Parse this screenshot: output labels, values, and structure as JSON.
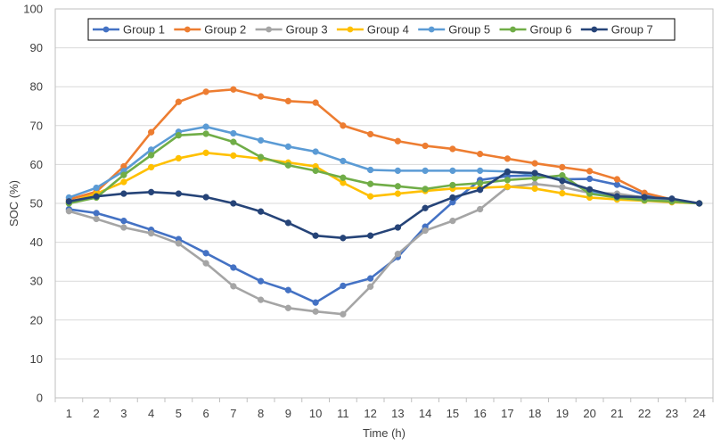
{
  "chart_data": {
    "type": "line",
    "title": "",
    "xlabel": "Time (h)",
    "ylabel": "SOC (%)",
    "ylim": [
      0,
      100
    ],
    "yticks": [
      0,
      10,
      20,
      30,
      40,
      50,
      60,
      70,
      80,
      90,
      100
    ],
    "categories": [
      "1",
      "2",
      "3",
      "4",
      "5",
      "6",
      "7",
      "8",
      "9",
      "10",
      "11",
      "12",
      "13",
      "14",
      "15",
      "16",
      "17",
      "18",
      "19",
      "20",
      "21",
      "22",
      "23",
      "24"
    ],
    "grid": "horizontal",
    "legend_position": "top",
    "series": [
      {
        "name": "Group 1",
        "color": "#4472C4",
        "values": [
          48.5,
          47.5,
          45.5,
          43.2,
          40.8,
          37.2,
          33.5,
          30.0,
          27.7,
          24.5,
          28.8,
          30.7,
          36.2,
          44.0,
          50.3,
          56.0,
          57.0,
          57.2,
          56.2,
          56.3,
          54.8,
          52.2,
          51.0,
          50.0
        ]
      },
      {
        "name": "Group 2",
        "color": "#ED7D31",
        "values": [
          51.0,
          53.0,
          59.5,
          68.3,
          76.1,
          78.7,
          79.3,
          77.5,
          76.3,
          75.9,
          70.0,
          67.8,
          66.0,
          64.8,
          64.0,
          62.7,
          61.5,
          60.3,
          59.3,
          58.3,
          56.2,
          52.7,
          51.0,
          50.0
        ]
      },
      {
        "name": "Group 3",
        "color": "#A5A5A5",
        "values": [
          48.0,
          46.0,
          43.8,
          42.3,
          39.7,
          34.6,
          28.7,
          25.2,
          23.1,
          22.2,
          21.5,
          28.6,
          37.0,
          43.0,
          45.5,
          48.5,
          54.2,
          55.0,
          54.2,
          52.7,
          52.5,
          51.5,
          50.5,
          50.0
        ]
      },
      {
        "name": "Group 4",
        "color": "#FFC000",
        "values": [
          50.3,
          52.5,
          55.5,
          59.3,
          61.6,
          63.0,
          62.3,
          61.5,
          60.5,
          59.5,
          55.3,
          51.8,
          52.5,
          53.2,
          53.8,
          54.0,
          54.3,
          53.8,
          52.6,
          51.5,
          51.0,
          50.7,
          50.3,
          50.0
        ]
      },
      {
        "name": "Group 5",
        "color": "#5B9BD5",
        "values": [
          51.5,
          54.0,
          58.3,
          63.8,
          68.4,
          69.7,
          68.0,
          66.2,
          64.6,
          63.3,
          60.9,
          58.6,
          58.4,
          58.4,
          58.4,
          58.4,
          58.2,
          57.5,
          56.2,
          53.0,
          51.5,
          51.0,
          50.5,
          50.0
        ]
      },
      {
        "name": "Group 6",
        "color": "#70AD47",
        "values": [
          50.0,
          51.5,
          57.3,
          62.4,
          67.5,
          67.9,
          65.8,
          61.9,
          59.8,
          58.4,
          56.6,
          55.0,
          54.4,
          53.7,
          54.7,
          55.2,
          56.0,
          56.5,
          57.2,
          52.5,
          51.5,
          50.8,
          50.5,
          50.0
        ]
      },
      {
        "name": "Group 7",
        "color": "#264478",
        "values": [
          50.5,
          51.8,
          52.5,
          52.9,
          52.5,
          51.6,
          50.0,
          47.9,
          45.0,
          41.7,
          41.1,
          41.7,
          43.8,
          48.8,
          51.5,
          53.5,
          58.1,
          57.8,
          55.8,
          53.6,
          51.8,
          51.6,
          51.2,
          50.0
        ]
      }
    ]
  }
}
